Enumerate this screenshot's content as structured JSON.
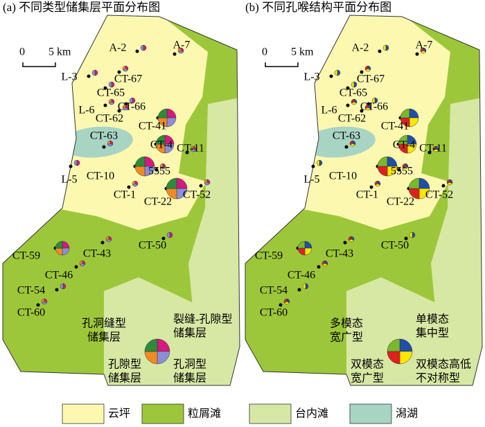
{
  "panels": [
    {
      "title": "(a) 不同类型储集层平面分布图",
      "pie_legend": [
        [
          "孔洞缝型",
          "储集层"
        ],
        [
          "裂缝-孔隙型",
          "储集层"
        ],
        [
          "孔隙型",
          "储集层"
        ],
        [
          "孔洞型",
          "储集层"
        ]
      ]
    },
    {
      "title": "(b) 不同孔喉结构平面分布图",
      "pie_legend": [
        [
          "多模态",
          "宽广型"
        ],
        [
          "单模态",
          "集中型"
        ],
        [
          "双模态",
          "宽广型"
        ],
        [
          "双模态高低",
          "不对称型"
        ]
      ]
    }
  ],
  "scale": {
    "zero": "0",
    "length": "5 km"
  },
  "wells": [
    "A-2",
    "A-7",
    "L-3",
    "CT-67",
    "CT-65",
    "L-6",
    "CT-66",
    "CT-62",
    "CT-41",
    "CT-63",
    "CT-4",
    "CT-11",
    "CT-10",
    "5555",
    "L-5",
    "CT-1",
    "CT-22",
    "CT-52",
    "CT-59",
    "CT-43",
    "CT-50",
    "CT-46",
    "CT-54",
    "CT-60"
  ],
  "legend": [
    "云坪",
    "粒屑滩",
    "台内滩",
    "潟湖"
  ]
}
